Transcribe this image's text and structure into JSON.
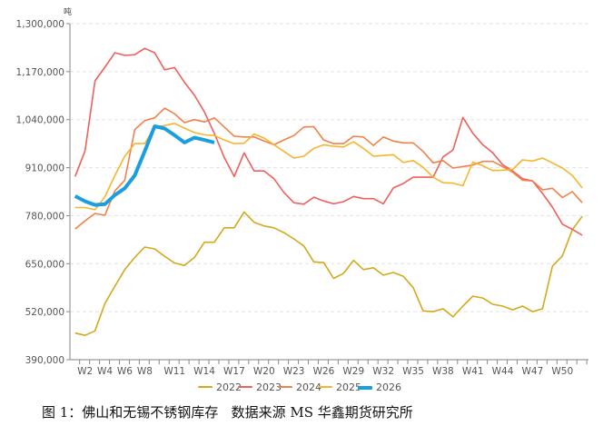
{
  "chart_data": {
    "type": "line",
    "title": "",
    "y_unit": "吨",
    "xlabel": "",
    "ylabel": "吨",
    "ylim": [
      390000,
      1300000
    ],
    "y_ticks": [
      "390,000",
      "520,000",
      "650,000",
      "780,000",
      "910,000",
      "1,040,000",
      "1,170,000",
      "1,300,000"
    ],
    "y_tick_values": [
      390000,
      520000,
      650000,
      780000,
      910000,
      1040000,
      1170000,
      1300000
    ],
    "x_tick_labels": [
      "W2",
      "W4",
      "W6",
      "W8",
      "W11",
      "W14",
      "W17",
      "W20",
      "W23",
      "W26",
      "W29",
      "W32",
      "W35",
      "W38",
      "W41",
      "W44",
      "W47",
      "W50"
    ],
    "x_tick_weeks": [
      2,
      4,
      6,
      8,
      11,
      14,
      17,
      20,
      23,
      26,
      29,
      32,
      35,
      38,
      41,
      44,
      47,
      50
    ],
    "weeks": 52,
    "grid": "horizontal dashed",
    "legend_position": "bottom",
    "series": [
      {
        "name": "2022",
        "color": "#d4a91c",
        "width": 1.6,
        "values": [
          462000,
          456000,
          468000,
          542000,
          589000,
          634000,
          667000,
          695000,
          690000,
          670000,
          652000,
          645000,
          667000,
          708000,
          708000,
          747000,
          747000,
          790000,
          762000,
          752000,
          747000,
          734000,
          717000,
          698000,
          655000,
          653000,
          610000,
          624000,
          659000,
          634000,
          639000,
          619000,
          626000,
          616000,
          585000,
          522000,
          520000,
          528000,
          506000,
          535000,
          562000,
          557000,
          540000,
          535000,
          525000,
          535000,
          520000,
          528000,
          643000,
          671000,
          742000,
          778000
        ]
      },
      {
        "name": "2023",
        "color": "#f0605a",
        "width": 1.6,
        "values": [
          886000,
          956000,
          1145000,
          1182000,
          1221000,
          1214000,
          1216000,
          1233000,
          1221000,
          1175000,
          1181000,
          1141000,
          1106000,
          1061000,
          1003000,
          938000,
          886000,
          950000,
          901000,
          901000,
          880000,
          843000,
          815000,
          811000,
          830000,
          820000,
          812000,
          818000,
          832000,
          826000,
          826000,
          812000,
          855000,
          867000,
          884000,
          884000,
          884000,
          939000,
          958000,
          1046000,
          1003000,
          972000,
          950000,
          918000,
          901000,
          880000,
          874000,
          840000,
          803000,
          757000,
          743000,
          727000
        ]
      },
      {
        "name": "2024",
        "color": "#f2804a",
        "width": 1.6,
        "values": [
          744000,
          766000,
          786000,
          781000,
          847000,
          876000,
          1013000,
          1037000,
          1045000,
          1071000,
          1056000,
          1032000,
          1040000,
          1034000,
          1045000,
          1020000,
          995000,
          993000,
          993000,
          982000,
          972000,
          985000,
          997000,
          1020000,
          1021000,
          985000,
          975000,
          975000,
          995000,
          993000,
          970000,
          993000,
          982000,
          977000,
          977000,
          954000,
          923000,
          929000,
          909000,
          913000,
          917000,
          927000,
          927000,
          913000,
          898000,
          876000,
          874000,
          850000,
          854000,
          829000,
          845000,
          815000
        ]
      },
      {
        "name": "2025",
        "color": "#f7b52c",
        "width": 1.6,
        "values": [
          802000,
          802000,
          796000,
          831000,
          889000,
          941000,
          975000,
          975000,
          1020000,
          1024000,
          1030000,
          1017000,
          1005000,
          999000,
          997000,
          985000,
          975000,
          976000,
          1001000,
          990000,
          972000,
          954000,
          936000,
          941000,
          962000,
          972000,
          968000,
          966000,
          980000,
          962000,
          941000,
          943000,
          945000,
          924000,
          929000,
          911000,
          884000,
          869000,
          868000,
          861000,
          925000,
          915000,
          902000,
          903000,
          905000,
          931000,
          928000,
          936000,
          923000,
          909000,
          889000,
          855000
        ]
      },
      {
        "name": "2026",
        "color": "#1a9ee0",
        "width": 4,
        "values": [
          833000,
          819000,
          809000,
          811000,
          836000,
          854000,
          889000,
          954000,
          1022000,
          1016000,
          998000,
          978000,
          991000,
          985000,
          978000
        ]
      }
    ]
  },
  "caption": "图 1：佛山和无锡不锈钢库存   数据来源 MS 华鑫期货研究所"
}
